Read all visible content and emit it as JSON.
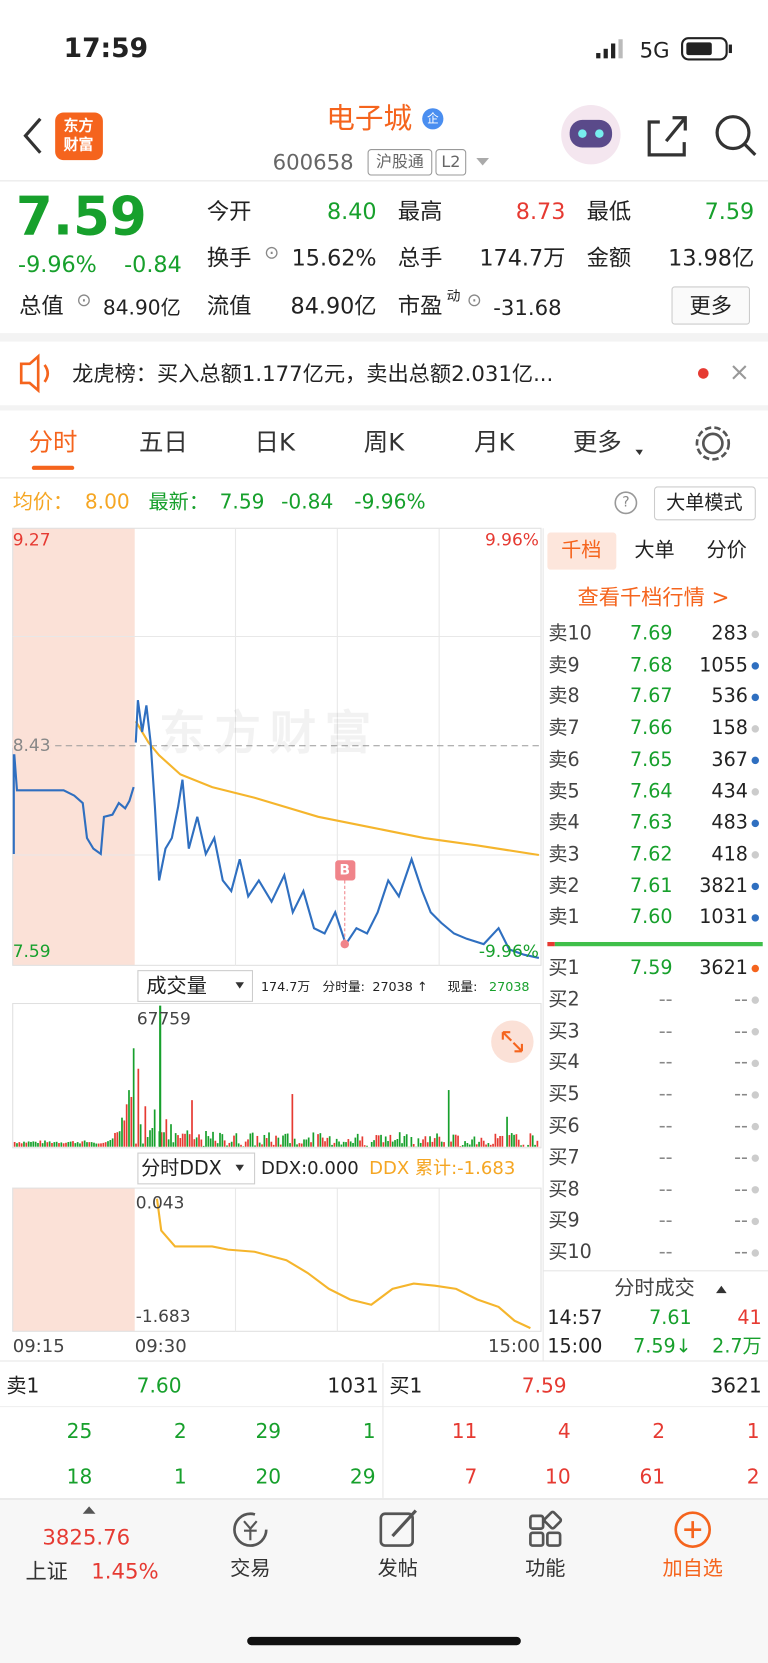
{
  "status": {
    "time": "17:59",
    "network": "5G"
  },
  "header": {
    "logo": [
      "东方",
      "财富"
    ],
    "title": "电子城",
    "badge": "企",
    "code": "600658",
    "tags": [
      "沪股通",
      "L2"
    ]
  },
  "quote": {
    "price": "7.59",
    "change_pct": "-9.96%",
    "change": "-0.84",
    "fields": [
      {
        "label": "今开",
        "value": "8.40"
      },
      {
        "label": "最高",
        "value": "8.73"
      },
      {
        "label": "最低",
        "value": "7.59"
      },
      {
        "label": "换手",
        "value": "15.62%"
      },
      {
        "label": "总手",
        "value": "174.7万"
      },
      {
        "label": "金额",
        "value": "13.98亿"
      },
      {
        "label": "总值",
        "value": "84.90亿"
      },
      {
        "label": "流值",
        "value": "84.90亿"
      },
      {
        "label": "市盈",
        "label_sup": "动",
        "value": "-31.68"
      }
    ],
    "more": "更多"
  },
  "notice": {
    "text": "龙虎榜：买入总额1.177亿元，卖出总额2.031亿..."
  },
  "tabs": [
    "分时",
    "五日",
    "日K",
    "周K",
    "月K",
    "更多"
  ],
  "chart_info": {
    "avg_label": "均价：",
    "avg": "8.00",
    "latest_label": "最新：",
    "latest": "7.59",
    "change": "-0.84",
    "change_pct": "-9.96%",
    "help": "?",
    "mode": "大单模式"
  },
  "price_chart": {
    "top": "9.27",
    "top_pct": "9.96%",
    "mid": "8.43",
    "bottom": "7.59",
    "bottom_pct": "-9.96%",
    "marker": "B",
    "watermark": "东方财富"
  },
  "volume": {
    "selector": "成交量",
    "total": "174.7万",
    "period_label": "分时量:",
    "period": "27038 ↑",
    "current_label": "现量:",
    "current": "27038",
    "max": "67759"
  },
  "ddx": {
    "selector": "分时DDX",
    "ddx": "DDX:0.000",
    "cumulative": "DDX 累计:-1.683",
    "top": "0.043",
    "bottom": "-1.683"
  },
  "times": [
    "09:15",
    "09:30",
    "15:00"
  ],
  "order_book": {
    "tabs": [
      "千档",
      "大单",
      "分价"
    ],
    "link": "查看千档行情 >",
    "asks": [
      {
        "label": "卖10",
        "price": "7.69",
        "volume": "283"
      },
      {
        "label": "卖9",
        "price": "7.68",
        "volume": "1055"
      },
      {
        "label": "卖8",
        "price": "7.67",
        "volume": "536"
      },
      {
        "label": "卖7",
        "price": "7.66",
        "volume": "158"
      },
      {
        "label": "卖6",
        "price": "7.65",
        "volume": "367"
      },
      {
        "label": "卖5",
        "price": "7.64",
        "volume": "434"
      },
      {
        "label": "卖4",
        "price": "7.63",
        "volume": "483"
      },
      {
        "label": "卖3",
        "price": "7.62",
        "volume": "418"
      },
      {
        "label": "卖2",
        "price": "7.61",
        "volume": "3821"
      },
      {
        "label": "卖1",
        "price": "7.60",
        "volume": "1031"
      }
    ],
    "bids": [
      {
        "label": "买1",
        "price": "7.59",
        "volume": "3621"
      },
      {
        "label": "买2",
        "price": "--",
        "volume": "--"
      },
      {
        "label": "买3",
        "price": "--",
        "volume": "--"
      },
      {
        "label": "买4",
        "price": "--",
        "volume": "--"
      },
      {
        "label": "买5",
        "price": "--",
        "volume": "--"
      },
      {
        "label": "买6",
        "price": "--",
        "volume": "--"
      },
      {
        "label": "买7",
        "price": "--",
        "volume": "--"
      },
      {
        "label": "买8",
        "price": "--",
        "volume": "--"
      },
      {
        "label": "买9",
        "price": "--",
        "volume": "--"
      },
      {
        "label": "买10",
        "price": "--",
        "volume": "--"
      }
    ]
  },
  "trades": {
    "title": "分时成交",
    "rows": [
      {
        "time": "14:57",
        "price": "7.61",
        "volume": "41"
      },
      {
        "time": "15:00",
        "price": "7.59↓",
        "volume": "2.7万"
      }
    ]
  },
  "queue": {
    "sell": {
      "label": "卖1",
      "price": "7.60",
      "volume": "1031",
      "orders": [
        [
          25,
          2,
          29,
          1
        ],
        [
          18,
          1,
          20,
          29
        ]
      ]
    },
    "buy": {
      "label": "买1",
      "price": "7.59",
      "volume": "3621",
      "orders": [
        [
          11,
          4,
          2,
          1
        ],
        [
          7,
          10,
          61,
          2
        ]
      ]
    }
  },
  "nav": {
    "index_value": "3825.76",
    "index_name": "上证",
    "index_pct": "1.45%",
    "items": [
      "交易",
      "发帖",
      "功能",
      "加自选"
    ]
  }
}
